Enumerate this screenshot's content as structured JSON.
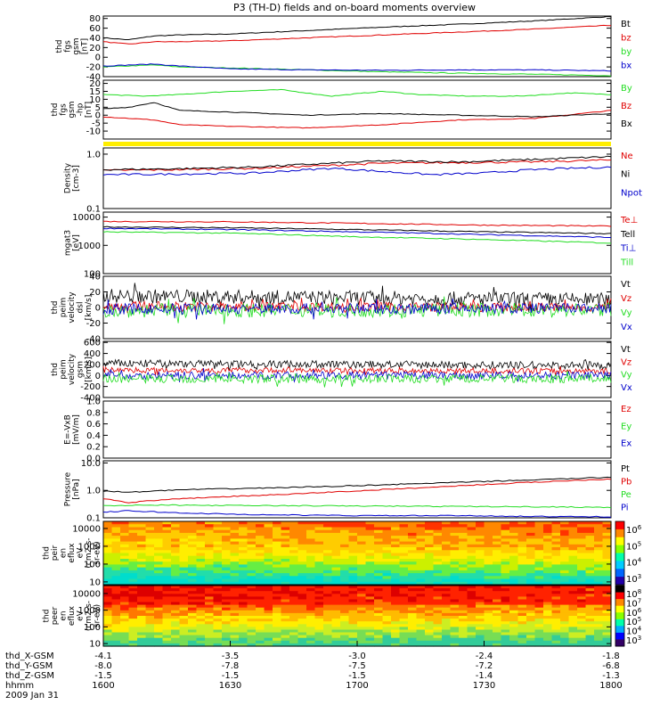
{
  "title": "P3 (TH-D) fields and on-board moments overview",
  "colors": {
    "black": "#000000",
    "red": "#e00000",
    "green": "#22dd22",
    "blue": "#0000cc",
    "yellow": "#ffee00"
  },
  "chart_data": [
    {
      "type": "line",
      "panel": "fgs-gsm",
      "ylabel": [
        "thd",
        "fgs",
        "gsm",
        "[nT]"
      ],
      "yticks": [
        "80",
        "60",
        "40",
        "20",
        "0",
        "-20",
        "-40"
      ],
      "ylim": [
        -40,
        85
      ],
      "legend": [
        {
          "label": "Bt",
          "color": "black"
        },
        {
          "label": "bz",
          "color": "red"
        },
        {
          "label": "by",
          "color": "green"
        },
        {
          "label": "bx",
          "color": "blue"
        }
      ],
      "series": [
        {
          "name": "Bt",
          "color": "black",
          "x": [
            0,
            0.05,
            0.1,
            0.15,
            0.25,
            0.4,
            0.55,
            0.7,
            0.85,
            1.0
          ],
          "y": [
            40,
            36,
            44,
            46,
            48,
            55,
            62,
            68,
            75,
            84
          ]
        },
        {
          "name": "bz",
          "color": "red",
          "x": [
            0,
            0.05,
            0.1,
            0.15,
            0.25,
            0.4,
            0.55,
            0.7,
            0.85,
            1.0
          ],
          "y": [
            32,
            27,
            32,
            32,
            34,
            40,
            46,
            52,
            58,
            66
          ]
        },
        {
          "name": "by",
          "color": "green",
          "x": [
            0,
            0.1,
            0.15,
            0.25,
            0.4,
            0.55,
            0.7,
            0.85,
            1.0
          ],
          "y": [
            -20,
            -16,
            -20,
            -22,
            -26,
            -30,
            -33,
            -35,
            -38
          ]
        },
        {
          "name": "bx",
          "color": "blue",
          "x": [
            0,
            0.1,
            0.15,
            0.25,
            0.4,
            0.55,
            0.7,
            0.85,
            1.0
          ],
          "y": [
            -18,
            -14,
            -18,
            -24,
            -26,
            -27,
            -26,
            -26,
            -28
          ]
        }
      ]
    },
    {
      "type": "line",
      "panel": "fgs-gse-hp",
      "ylabel": [
        "thd",
        "fgs",
        "gsm",
        "-hp",
        "[nT]"
      ],
      "yticks": [
        "20",
        "15",
        "10",
        "5",
        "0",
        "-5",
        "-10"
      ],
      "ylim": [
        -15,
        22
      ],
      "legend": [
        {
          "label": "By",
          "color": "green"
        },
        {
          "label": "Bz",
          "color": "red"
        },
        {
          "label": "Bx",
          "color": "black"
        }
      ],
      "series": [
        {
          "name": "By",
          "color": "green",
          "x": [
            0,
            0.08,
            0.15,
            0.25,
            0.35,
            0.45,
            0.55,
            0.62,
            0.72,
            0.82,
            0.92,
            1.0
          ],
          "y": [
            13,
            12,
            13,
            15,
            16,
            12,
            15,
            13,
            12,
            12,
            14,
            13
          ]
        },
        {
          "name": "Bz",
          "color": "red",
          "x": [
            0,
            0.05,
            0.1,
            0.15,
            0.25,
            0.4,
            0.55,
            0.7,
            0.85,
            1.0
          ],
          "y": [
            -1,
            -2,
            -3,
            -6,
            -7,
            -8,
            -6,
            -3,
            -2,
            3
          ]
        },
        {
          "name": "Bx",
          "color": "black",
          "x": [
            0,
            0.05,
            0.1,
            0.15,
            0.25,
            0.4,
            0.55,
            0.7,
            0.85,
            1.0
          ],
          "y": [
            4,
            5,
            8,
            3,
            2,
            0,
            1,
            0,
            -1,
            1
          ]
        }
      ]
    },
    {
      "type": "line",
      "panel": "density",
      "ylabel": [
        "Density",
        "[cm-3]"
      ],
      "yscale": "log",
      "yticks": [
        "1.0",
        "0.1"
      ],
      "ylim": [
        0.1,
        1.3
      ],
      "legend": [
        {
          "label": "Ne",
          "color": "red"
        },
        {
          "label": "Ni",
          "color": "black"
        },
        {
          "label": "Npot",
          "color": "blue"
        }
      ],
      "series": [
        {
          "name": "Ne",
          "color": "red",
          "x": [
            0,
            0.15,
            0.3,
            0.45,
            0.55,
            0.7,
            0.85,
            1.0
          ],
          "y": [
            0.5,
            0.52,
            0.55,
            0.62,
            0.68,
            0.7,
            0.72,
            0.78
          ]
        },
        {
          "name": "Ni",
          "color": "black",
          "x": [
            0,
            0.15,
            0.3,
            0.45,
            0.55,
            0.7,
            0.85,
            1.0
          ],
          "y": [
            0.52,
            0.54,
            0.58,
            0.68,
            0.75,
            0.72,
            0.8,
            0.9
          ]
        },
        {
          "name": "Npot",
          "color": "blue",
          "x": [
            0,
            0.15,
            0.3,
            0.45,
            0.55,
            0.65,
            0.75,
            0.85,
            1.0
          ],
          "y": [
            0.42,
            0.43,
            0.45,
            0.55,
            0.48,
            0.42,
            0.45,
            0.52,
            0.58
          ]
        }
      ]
    },
    {
      "type": "line",
      "panel": "temperature",
      "ylabel": [
        "mgat3",
        "[eV]"
      ],
      "yscale": "log",
      "yticks": [
        "10000",
        "1000",
        "100"
      ],
      "ylim": [
        100,
        15000
      ],
      "legend": [
        {
          "label": "Te⊥",
          "color": "red"
        },
        {
          "label": "Tell",
          "color": "black"
        },
        {
          "label": "Ti⊥",
          "color": "blue"
        },
        {
          "label": "Till",
          "color": "green"
        }
      ],
      "series": [
        {
          "name": "Te⊥",
          "color": "red",
          "x": [
            0,
            0.25,
            0.5,
            0.75,
            1.0
          ],
          "y": [
            7000,
            6800,
            6000,
            5200,
            4800
          ]
        },
        {
          "name": "Tell",
          "color": "black",
          "x": [
            0,
            0.25,
            0.5,
            0.75,
            1.0
          ],
          "y": [
            4500,
            4200,
            3600,
            3000,
            2600
          ]
        },
        {
          "name": "Ti⊥",
          "color": "blue",
          "x": [
            0,
            0.25,
            0.5,
            0.75,
            1.0
          ],
          "y": [
            4000,
            3600,
            3000,
            2400,
            1900
          ]
        },
        {
          "name": "Till",
          "color": "green",
          "x": [
            0,
            0.25,
            0.5,
            0.75,
            1.0
          ],
          "y": [
            3000,
            2700,
            2000,
            1600,
            1200
          ]
        }
      ]
    },
    {
      "type": "line",
      "panel": "velocity-dsl",
      "ylabel": [
        "thd",
        "peim",
        "velocity",
        "dsl",
        "[km/s]"
      ],
      "yticks": [
        "40",
        "20",
        "0",
        "-20",
        "-40"
      ],
      "ylim": [
        -40,
        40
      ],
      "legend": [
        {
          "label": "Vt",
          "color": "black"
        },
        {
          "label": "Vz",
          "color": "red"
        },
        {
          "label": "Vy",
          "color": "green"
        },
        {
          "label": "Vx",
          "color": "blue"
        }
      ],
      "series": [
        {
          "name": "Vt",
          "color": "black",
          "mean": [
            15,
            10
          ],
          "amp": 9
        },
        {
          "name": "Vz",
          "color": "red",
          "mean": [
            2,
            0
          ],
          "amp": 6
        },
        {
          "name": "Vy",
          "color": "green",
          "mean": [
            -4,
            -3
          ],
          "amp": 9
        },
        {
          "name": "Vx",
          "color": "blue",
          "mean": [
            -2,
            -1
          ],
          "amp": 7
        }
      ]
    },
    {
      "type": "line",
      "panel": "velocity-gsm",
      "ylabel": [
        "thd",
        "peim",
        "velocity",
        "gsm",
        "[km/s]"
      ],
      "yticks": [
        "600",
        "400",
        "200",
        "0",
        "-200",
        "-400"
      ],
      "ylim": [
        -400,
        620
      ],
      "legend": [
        {
          "label": "Vt",
          "color": "black"
        },
        {
          "label": "Vz",
          "color": "red"
        },
        {
          "label": "Vy",
          "color": "green"
        },
        {
          "label": "Vx",
          "color": "blue"
        }
      ],
      "series": [
        {
          "name": "Vt",
          "color": "black",
          "mean": [
            220,
            180
          ],
          "amp": 70
        },
        {
          "name": "Vz",
          "color": "red",
          "mean": [
            100,
            80
          ],
          "amp": 50
        },
        {
          "name": "Vx",
          "color": "blue",
          "mean": [
            0,
            0
          ],
          "amp": 70
        },
        {
          "name": "Vy",
          "color": "green",
          "mean": [
            -60,
            -60
          ],
          "amp": 80
        }
      ]
    },
    {
      "type": "line",
      "panel": "efield",
      "ylabel": [
        "E=-VxB",
        "[mV/m]"
      ],
      "yticks": [
        "1.0",
        "0.8",
        "0.6",
        "0.4",
        "0.2",
        "0.0"
      ],
      "ylim": [
        0.0,
        1.0
      ],
      "legend": [
        {
          "label": "Ez",
          "color": "red"
        },
        {
          "label": "Ey",
          "color": "green"
        },
        {
          "label": "Ex",
          "color": "blue"
        }
      ],
      "series": []
    },
    {
      "type": "line",
      "panel": "pressure",
      "ylabel": [
        "Pressure",
        "[nPa]"
      ],
      "yscale": "log",
      "yticks": [
        "10.0",
        "1.0",
        "0.1"
      ],
      "ylim": [
        0.1,
        12
      ],
      "legend": [
        {
          "label": "Pt",
          "color": "black"
        },
        {
          "label": "Pb",
          "color": "red"
        },
        {
          "label": "Pe",
          "color": "green"
        },
        {
          "label": "Pi",
          "color": "blue"
        }
      ],
      "series": [
        {
          "name": "Pt",
          "color": "black",
          "x": [
            0,
            0.05,
            0.15,
            0.3,
            0.45,
            0.6,
            0.75,
            0.9,
            1.0
          ],
          "y": [
            0.95,
            0.85,
            1.05,
            1.2,
            1.4,
            1.7,
            2.1,
            2.6,
            3.0
          ]
        },
        {
          "name": "Pb",
          "color": "red",
          "x": [
            0,
            0.05,
            0.12,
            0.2,
            0.35,
            0.5,
            0.65,
            0.8,
            0.9,
            1.0
          ],
          "y": [
            0.5,
            0.36,
            0.45,
            0.55,
            0.7,
            0.95,
            1.3,
            1.8,
            2.2,
            2.6
          ]
        },
        {
          "name": "Pe",
          "color": "green",
          "x": [
            0,
            0.1,
            0.3,
            0.5,
            0.7,
            0.9,
            1.0
          ],
          "y": [
            0.28,
            0.29,
            0.28,
            0.27,
            0.26,
            0.25,
            0.24
          ]
        },
        {
          "name": "Pi",
          "color": "blue",
          "x": [
            0,
            0.05,
            0.15,
            0.3,
            0.5,
            0.7,
            0.9,
            1.0
          ],
          "y": [
            0.16,
            0.18,
            0.15,
            0.13,
            0.12,
            0.12,
            0.11,
            0.11
          ]
        }
      ]
    },
    {
      "type": "heatmap",
      "panel": "ion-spectrogram",
      "ylabel": [
        "thd",
        "peir",
        "en",
        "eflux",
        "eV",
        "(cm2-s-",
        "sr-eV)"
      ],
      "yscale": "log",
      "yticks": [
        "10000",
        "1000",
        "100",
        "10"
      ],
      "ylim": [
        7,
        25000
      ],
      "colorbar": {
        "ticks": [
          "10",
          "10",
          "10",
          "10"
        ],
        "exponents": [
          "6",
          "5",
          "4",
          "3"
        ],
        "range": [
          1000,
          1000000
        ]
      }
    },
    {
      "type": "heatmap",
      "panel": "electron-spectrogram",
      "ylabel": [
        "thd",
        "peer",
        "en",
        "eflux",
        "eV",
        "(cm2-s-",
        "sr-eV)"
      ],
      "yscale": "log",
      "yticks": [
        "10000",
        "1000",
        "100",
        "10"
      ],
      "ylim": [
        7,
        30000
      ],
      "colorbar": {
        "ticks": [
          "10",
          "10",
          "10",
          "10",
          "10",
          "10"
        ],
        "exponents": [
          "8",
          "7",
          "6",
          "5",
          "4",
          "3"
        ],
        "range": [
          1000,
          100000000
        ]
      }
    }
  ],
  "xaxis": {
    "rows": [
      {
        "label": "thd_X-GSM",
        "values": [
          "-4.1",
          "-3.5",
          "-3.0",
          "-2.4",
          "-1.8"
        ]
      },
      {
        "label": "thd_Y-GSM",
        "values": [
          "-8.0",
          "-7.8",
          "-7.5",
          "-7.2",
          "-6.8"
        ]
      },
      {
        "label": "thd_Z-GSM",
        "values": [
          "-1.5",
          "-1.5",
          "-1.5",
          "-1.4",
          "-1.3"
        ]
      },
      {
        "label": "hhmm",
        "values": [
          "1600",
          "1630",
          "1700",
          "1730",
          "1800"
        ]
      }
    ],
    "date": "2009 Jan 31"
  }
}
